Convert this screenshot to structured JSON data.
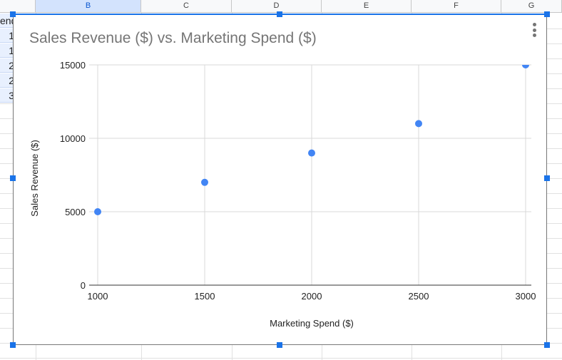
{
  "sheet": {
    "columns": [
      "B",
      "C",
      "D",
      "E",
      "F",
      "G"
    ],
    "selected_column": "B",
    "colA_cells": [
      "end",
      "1",
      "1",
      "2",
      "2",
      "3"
    ]
  },
  "chart_data": {
    "type": "scatter",
    "title": "Sales Revenue ($) vs. Marketing Spend ($)",
    "xlabel": "Marketing Spend ($)",
    "ylabel": "Sales Revenue ($)",
    "x": [
      1000,
      1500,
      2000,
      2500,
      3000
    ],
    "y": [
      5000,
      7000,
      9000,
      11000,
      15000
    ],
    "xlim": [
      1000,
      3000
    ],
    "ylim": [
      0,
      15000
    ],
    "xticks": [
      "1000",
      "1500",
      "2000",
      "2500",
      "3000"
    ],
    "yticks": [
      "0",
      "5000",
      "10000",
      "15000"
    ],
    "grid": true,
    "point_color": "#4285f4"
  }
}
